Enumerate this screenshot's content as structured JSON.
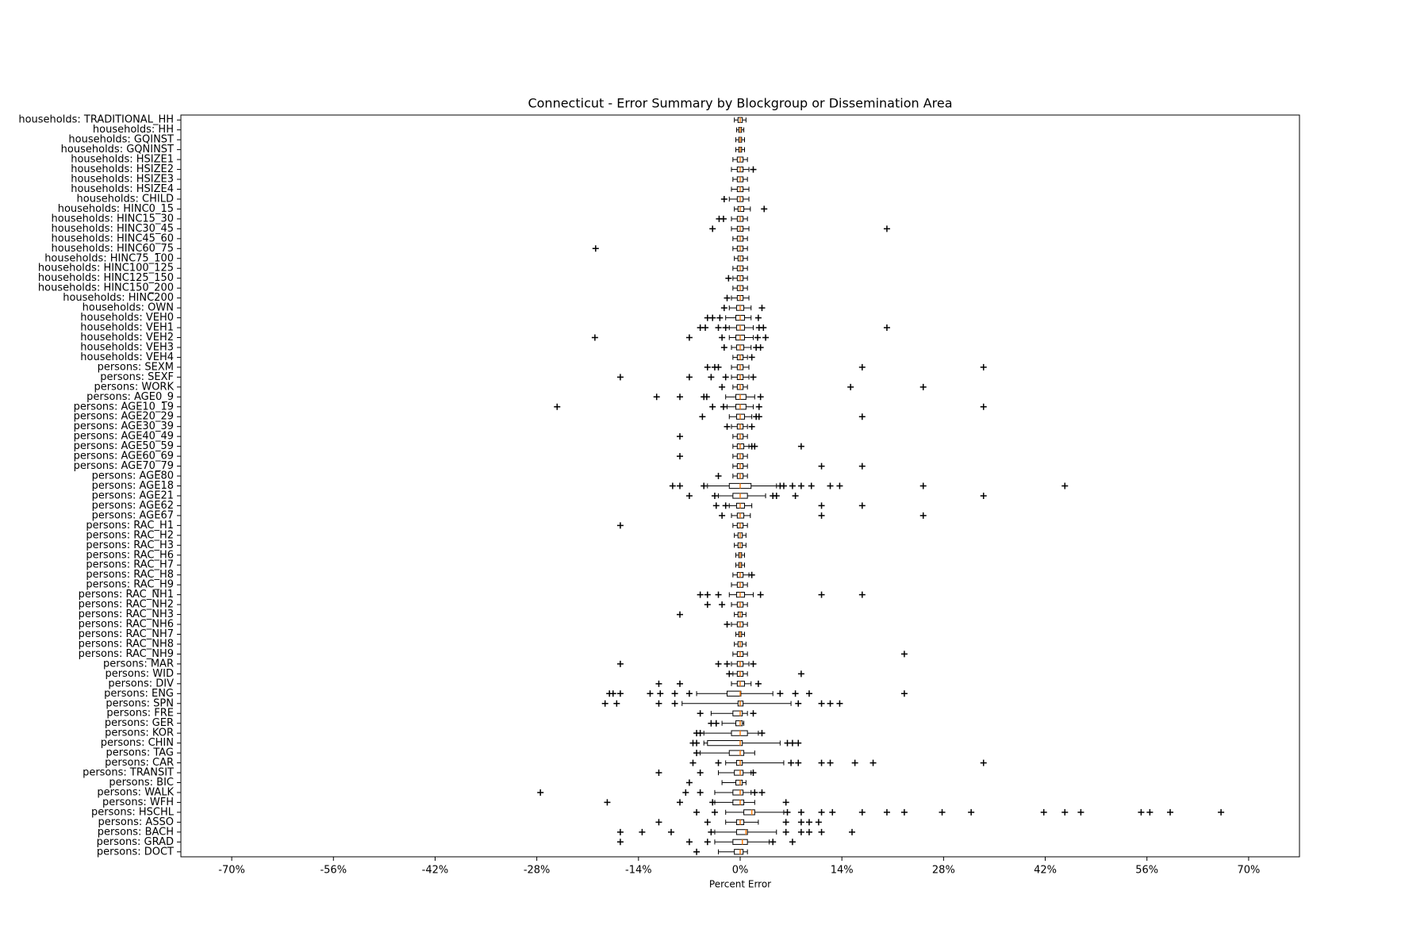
{
  "chart_data": {
    "type": "boxplot",
    "orientation": "horizontal",
    "title": "Connecticut - Error Summary by Blockgroup or Dissemination Area",
    "x_label": "Percent Error",
    "xlim": [
      -77,
      77
    ],
    "xticks": [
      {
        "value": -70,
        "label": "-70%"
      },
      {
        "value": -56,
        "label": "-56%"
      },
      {
        "value": -42,
        "label": "-42%"
      },
      {
        "value": -28,
        "label": "-28%"
      },
      {
        "value": -14,
        "label": "-14%"
      },
      {
        "value": 0,
        "label": "0%"
      },
      {
        "value": 14,
        "label": "14%"
      },
      {
        "value": 28,
        "label": "28%"
      },
      {
        "value": 42,
        "label": "42%"
      },
      {
        "value": 56,
        "label": "56%"
      },
      {
        "value": 70,
        "label": "70%"
      }
    ],
    "box_color": "#000000",
    "median_color": "#ff7f0e",
    "boxes": [
      {
        "label": "households: TRADITIONAL_HH",
        "whislo": -0.8,
        "q1": -0.3,
        "med": 0,
        "q3": 0.3,
        "whishi": 0.8,
        "fliers": []
      },
      {
        "label": "households: HH",
        "whislo": -0.5,
        "q1": -0.2,
        "med": 0,
        "q3": 0.2,
        "whishi": 0.5,
        "fliers": []
      },
      {
        "label": "households: GQINST",
        "whislo": -0.6,
        "q1": -0.2,
        "med": 0,
        "q3": 0.2,
        "whishi": 0.6,
        "fliers": []
      },
      {
        "label": "households: GQNINST",
        "whislo": -0.6,
        "q1": -0.2,
        "med": 0,
        "q3": 0.2,
        "whishi": 0.6,
        "fliers": []
      },
      {
        "label": "households: HSIZE1",
        "whislo": -1,
        "q1": -0.4,
        "med": 0,
        "q3": 0.4,
        "whishi": 1,
        "fliers": []
      },
      {
        "label": "households: HSIZE2",
        "whislo": -1.2,
        "q1": -0.4,
        "med": 0,
        "q3": 0.4,
        "whishi": 1.2,
        "fliers": [
          1.8
        ]
      },
      {
        "label": "households: HSIZE3",
        "whislo": -1,
        "q1": -0.4,
        "med": 0,
        "q3": 0.4,
        "whishi": 1,
        "fliers": []
      },
      {
        "label": "households: HSIZE4",
        "whislo": -1.2,
        "q1": -0.4,
        "med": 0,
        "q3": 0.4,
        "whishi": 1.2,
        "fliers": []
      },
      {
        "label": "households: CHILD",
        "whislo": -1.5,
        "q1": -0.4,
        "med": 0,
        "q3": 0.4,
        "whishi": 1.2,
        "fliers": [
          -2.2
        ]
      },
      {
        "label": "households: HINC0_15",
        "whislo": -0.8,
        "q1": -0.3,
        "med": 0,
        "q3": 0.5,
        "whishi": 1.4,
        "fliers": [
          3.3
        ]
      },
      {
        "label": "households: HINC15_30",
        "whislo": -1.2,
        "q1": -0.4,
        "med": 0,
        "q3": 0.4,
        "whishi": 1,
        "fliers": [
          -2.9,
          -2.3
        ]
      },
      {
        "label": "households: HINC30_45",
        "whislo": -1.2,
        "q1": -0.4,
        "med": 0,
        "q3": 0.4,
        "whishi": 1.2,
        "fliers": [
          -3.8,
          20.2
        ]
      },
      {
        "label": "households: HINC45_60",
        "whislo": -1,
        "q1": -0.4,
        "med": 0,
        "q3": 0.4,
        "whishi": 1,
        "fliers": []
      },
      {
        "label": "households: HINC60_75",
        "whislo": -1,
        "q1": -0.4,
        "med": 0,
        "q3": 0.4,
        "whishi": 1,
        "fliers": [
          -19.9
        ]
      },
      {
        "label": "households: HINC75_100",
        "whislo": -0.8,
        "q1": -0.3,
        "med": 0,
        "q3": 0.4,
        "whishi": 1,
        "fliers": []
      },
      {
        "label": "households: HINC100_125",
        "whislo": -1,
        "q1": -0.4,
        "med": 0,
        "q3": 0.4,
        "whishi": 1,
        "fliers": []
      },
      {
        "label": "households: HINC125_150",
        "whislo": -1,
        "q1": -0.4,
        "med": 0,
        "q3": 0.4,
        "whishi": 1,
        "fliers": [
          -1.6
        ]
      },
      {
        "label": "households: HINC150_200",
        "whislo": -1,
        "q1": -0.4,
        "med": 0,
        "q3": 0.4,
        "whishi": 1,
        "fliers": []
      },
      {
        "label": "households: HINC200",
        "whislo": -1.2,
        "q1": -0.4,
        "med": 0,
        "q3": 0.4,
        "whishi": 1.2,
        "fliers": [
          -1.8
        ]
      },
      {
        "label": "households: OWN",
        "whislo": -1.5,
        "q1": -0.5,
        "med": 0,
        "q3": 0.5,
        "whishi": 1.5,
        "fliers": [
          -2.2,
          3
        ]
      },
      {
        "label": "households: VEH0",
        "whislo": -2,
        "q1": -0.6,
        "med": 0,
        "q3": 0.6,
        "whishi": 1.5,
        "fliers": [
          -4.5,
          -3.8,
          -2.8,
          2.5
        ]
      },
      {
        "label": "households: VEH1",
        "whislo": -1.5,
        "q1": -0.5,
        "med": 0,
        "q3": 0.6,
        "whishi": 1.8,
        "fliers": [
          -5.5,
          -4.8,
          -3,
          -2,
          2.6,
          3.2,
          20.2
        ]
      },
      {
        "label": "households: VEH2",
        "whislo": -1.5,
        "q1": -0.6,
        "med": 0,
        "q3": 0.6,
        "whishi": 1.8,
        "fliers": [
          -20,
          -7,
          -2.5,
          2.4,
          3.5
        ]
      },
      {
        "label": "households: VEH3",
        "whislo": -1.2,
        "q1": -0.5,
        "med": 0,
        "q3": 0.5,
        "whishi": 1.5,
        "fliers": [
          -2.2,
          2.2,
          2.8
        ]
      },
      {
        "label": "households: VEH4",
        "whislo": -1,
        "q1": -0.4,
        "med": 0,
        "q3": 0.4,
        "whishi": 1,
        "fliers": [
          1.6
        ]
      },
      {
        "label": "persons: SEXM",
        "whislo": -1.2,
        "q1": -0.4,
        "med": 0,
        "q3": 0.4,
        "whishi": 1.2,
        "fliers": [
          -4.5,
          -3.5,
          -3,
          16.8,
          33.5
        ]
      },
      {
        "label": "persons: SEXF",
        "whislo": -1.2,
        "q1": -0.4,
        "med": 0,
        "q3": 0.4,
        "whishi": 1.2,
        "fliers": [
          -16.5,
          -7,
          -4,
          -2,
          1.8
        ]
      },
      {
        "label": "persons: WORK",
        "whislo": -1,
        "q1": -0.4,
        "med": 0,
        "q3": 0.4,
        "whishi": 1,
        "fliers": [
          -2.5,
          15.2,
          25.2
        ]
      },
      {
        "label": "persons: AGE0_9",
        "whislo": -2,
        "q1": -0.6,
        "med": 0,
        "q3": 0.8,
        "whishi": 2,
        "fliers": [
          -11.5,
          -8.3,
          -5,
          -4.6,
          2.8
        ]
      },
      {
        "label": "persons: AGE10_19",
        "whislo": -1.8,
        "q1": -0.6,
        "med": 0,
        "q3": 0.8,
        "whishi": 1.8,
        "fliers": [
          -25.2,
          -3.8,
          -2.3,
          2.6,
          33.5
        ]
      },
      {
        "label": "persons: AGE20_29",
        "whislo": -1.5,
        "q1": -0.5,
        "med": 0,
        "q3": 0.6,
        "whishi": 1.6,
        "fliers": [
          -5.2,
          2.2,
          2.6,
          16.8
        ]
      },
      {
        "label": "persons: AGE30_39",
        "whislo": -1.2,
        "q1": -0.4,
        "med": 0,
        "q3": 0.4,
        "whishi": 1,
        "fliers": [
          -1.8,
          1.6
        ]
      },
      {
        "label": "persons: AGE40_49",
        "whislo": -1,
        "q1": -0.4,
        "med": 0,
        "q3": 0.4,
        "whishi": 1,
        "fliers": [
          -8.3
        ]
      },
      {
        "label": "persons: AGE50_59",
        "whislo": -1,
        "q1": -0.4,
        "med": 0,
        "q3": 0.5,
        "whishi": 1.2,
        "fliers": [
          1.6,
          2,
          8.4
        ]
      },
      {
        "label": "persons: AGE60_69",
        "whislo": -1,
        "q1": -0.4,
        "med": 0,
        "q3": 0.4,
        "whishi": 1,
        "fliers": [
          -8.3
        ]
      },
      {
        "label": "persons: AGE70_79",
        "whislo": -1,
        "q1": -0.4,
        "med": 0,
        "q3": 0.4,
        "whishi": 1,
        "fliers": [
          11.2,
          16.8
        ]
      },
      {
        "label": "persons: AGE80",
        "whislo": -1,
        "q1": -0.4,
        "med": 0,
        "q3": 0.4,
        "whishi": 1,
        "fliers": [
          -3
        ]
      },
      {
        "label": "persons: AGE18",
        "whislo": -4.5,
        "q1": -1.5,
        "med": 0,
        "q3": 1.5,
        "whishi": 5,
        "fliers": [
          -9.3,
          -8.3,
          -5,
          5.5,
          6,
          7.2,
          8.4,
          9.8,
          12.4,
          13.7,
          25.2,
          44.7
        ]
      },
      {
        "label": "persons: AGE21",
        "whislo": -3,
        "q1": -1,
        "med": 0,
        "q3": 1,
        "whishi": 3.5,
        "fliers": [
          -7,
          -3.5,
          4.5,
          5,
          7.6,
          33.5
        ]
      },
      {
        "label": "persons: AGE62",
        "whislo": -1.5,
        "q1": -0.5,
        "med": 0,
        "q3": 0.6,
        "whishi": 1.6,
        "fliers": [
          -3.3,
          -2,
          11.2,
          16.8
        ]
      },
      {
        "label": "persons: AGE67",
        "whislo": -1.2,
        "q1": -0.4,
        "med": 0,
        "q3": 0.5,
        "whishi": 1.4,
        "fliers": [
          -2.5,
          11.2,
          25.2
        ]
      },
      {
        "label": "persons: RAC_H1",
        "whislo": -1,
        "q1": -0.4,
        "med": 0,
        "q3": 0.4,
        "whishi": 1,
        "fliers": [
          -16.5
        ]
      },
      {
        "label": "persons: RAC_H2",
        "whislo": -0.8,
        "q1": -0.3,
        "med": 0,
        "q3": 0.3,
        "whishi": 0.8,
        "fliers": []
      },
      {
        "label": "persons: RAC_H3",
        "whislo": -0.8,
        "q1": -0.3,
        "med": 0,
        "q3": 0.3,
        "whishi": 0.8,
        "fliers": []
      },
      {
        "label": "persons: RAC_H6",
        "whislo": -0.6,
        "q1": -0.2,
        "med": 0,
        "q3": 0.2,
        "whishi": 0.6,
        "fliers": []
      },
      {
        "label": "persons: RAC_H7",
        "whislo": -0.6,
        "q1": -0.2,
        "med": 0,
        "q3": 0.2,
        "whishi": 0.6,
        "fliers": []
      },
      {
        "label": "persons: RAC_H8",
        "whislo": -1,
        "q1": -0.4,
        "med": 0,
        "q3": 0.4,
        "whishi": 1.2,
        "fliers": [
          1.6
        ]
      },
      {
        "label": "persons: RAC_H9",
        "whislo": -1.2,
        "q1": -0.4,
        "med": 0,
        "q3": 0.4,
        "whishi": 1,
        "fliers": []
      },
      {
        "label": "persons: RAC_NH1",
        "whislo": -1.5,
        "q1": -0.5,
        "med": 0,
        "q3": 0.6,
        "whishi": 1.8,
        "fliers": [
          -5.5,
          -4.5,
          -3,
          2.8,
          11.2,
          16.8
        ]
      },
      {
        "label": "persons: RAC_NH2",
        "whislo": -1.2,
        "q1": -0.4,
        "med": 0,
        "q3": 0.4,
        "whishi": 1,
        "fliers": [
          -4.5,
          -2.5
        ]
      },
      {
        "label": "persons: RAC_NH3",
        "whislo": -0.8,
        "q1": -0.3,
        "med": 0,
        "q3": 0.3,
        "whishi": 0.8,
        "fliers": [
          -8.3
        ]
      },
      {
        "label": "persons: RAC_NH6",
        "whislo": -1.2,
        "q1": -0.4,
        "med": 0,
        "q3": 0.4,
        "whishi": 1,
        "fliers": [
          -1.8
        ]
      },
      {
        "label": "persons: RAC_NH7",
        "whislo": -0.6,
        "q1": -0.2,
        "med": 0,
        "q3": 0.2,
        "whishi": 0.6,
        "fliers": []
      },
      {
        "label": "persons: RAC_NH8",
        "whislo": -0.8,
        "q1": -0.3,
        "med": 0,
        "q3": 0.3,
        "whishi": 0.8,
        "fliers": []
      },
      {
        "label": "persons: RAC_NH9",
        "whislo": -1,
        "q1": -0.4,
        "med": 0,
        "q3": 0.4,
        "whishi": 1,
        "fliers": [
          22.6
        ]
      },
      {
        "label": "persons: MAR",
        "whislo": -1.2,
        "q1": -0.4,
        "med": 0,
        "q3": 0.4,
        "whishi": 1.2,
        "fliers": [
          -16.5,
          -3,
          -1.8,
          1.8
        ]
      },
      {
        "label": "persons: WID",
        "whislo": -1,
        "q1": -0.4,
        "med": 0,
        "q3": 0.4,
        "whishi": 1,
        "fliers": [
          -1.5,
          8.4
        ]
      },
      {
        "label": "persons: DIV",
        "whislo": -1.2,
        "q1": -0.4,
        "med": 0,
        "q3": 0.6,
        "whishi": 1.5,
        "fliers": [
          -11.2,
          -8.3,
          2.5
        ]
      },
      {
        "label": "persons: ENG",
        "whislo": -6,
        "q1": -1.8,
        "med": 0,
        "q3": 0.1,
        "whishi": 4.5,
        "fliers": [
          -18,
          -17.5,
          -16.5,
          -12.4,
          -11,
          -9,
          -7,
          5.5,
          7.6,
          9.5,
          22.6
        ]
      },
      {
        "label": "persons: SPN",
        "whislo": -8,
        "q1": -0.3,
        "med": 0,
        "q3": 0.4,
        "whishi": 7,
        "fliers": [
          -18.6,
          -17,
          -11.2,
          -9,
          8,
          11.2,
          12.4,
          13.7
        ]
      },
      {
        "label": "persons: FRE",
        "whislo": -4,
        "q1": -1,
        "med": 0,
        "q3": 0.3,
        "whishi": 1,
        "fliers": [
          -5.5,
          1.8
        ]
      },
      {
        "label": "persons: GER",
        "whislo": -2.5,
        "q1": -0.6,
        "med": 0,
        "q3": 0.3,
        "whishi": 0.5,
        "fliers": [
          -4,
          -3.3
        ]
      },
      {
        "label": "persons: KOR",
        "whislo": -5,
        "q1": -1.2,
        "med": 0,
        "q3": 1,
        "whishi": 2.5,
        "fliers": [
          -6,
          -5.5,
          3
        ]
      },
      {
        "label": "persons: CHIN",
        "whislo": -5,
        "q1": -4.5,
        "med": 0,
        "q3": 0.3,
        "whishi": 5.5,
        "fliers": [
          -6.5,
          -6,
          6.5,
          7.2,
          8
        ]
      },
      {
        "label": "persons: TAG",
        "whislo": -5.5,
        "q1": -1.5,
        "med": 0,
        "q3": 0.5,
        "whishi": 2,
        "fliers": [
          -6
        ]
      },
      {
        "label": "persons: CAR",
        "whislo": -2,
        "q1": -0.5,
        "med": 0,
        "q3": 0.3,
        "whishi": 6,
        "fliers": [
          -6.5,
          -3,
          7,
          8,
          11.2,
          12.4,
          15.8,
          18.3,
          33.5
        ]
      },
      {
        "label": "persons: TRANSIT",
        "whislo": -3,
        "q1": -0.8,
        "med": 0,
        "q3": 0.4,
        "whishi": 1.5,
        "fliers": [
          -11.2,
          -5.5,
          1.8
        ]
      },
      {
        "label": "persons: BIC",
        "whislo": -2.5,
        "q1": -0.6,
        "med": 0,
        "q3": 0.3,
        "whishi": 0.8,
        "fliers": [
          -7
        ]
      },
      {
        "label": "persons: WALK",
        "whislo": -3.5,
        "q1": -1,
        "med": 0,
        "q3": 0.4,
        "whishi": 1.5,
        "fliers": [
          -27.5,
          -7.5,
          -5.5,
          2,
          3
        ]
      },
      {
        "label": "persons: WFH",
        "whislo": -3.5,
        "q1": -1,
        "med": 0,
        "q3": 0.5,
        "whishi": 2,
        "fliers": [
          -18.3,
          -8.3,
          -3.8,
          6.3
        ]
      },
      {
        "label": "persons: HSCHL",
        "whislo": -2,
        "q1": 0.5,
        "med": 1.6,
        "q3": 2,
        "whishi": 6,
        "fliers": [
          -6,
          -3.5,
          6.5,
          8.4,
          11.2,
          12.7,
          16.8,
          20.2,
          22.6,
          27.8,
          31.8,
          41.8,
          44.7,
          46.9,
          55.2,
          56.4,
          59.2,
          66.2
        ]
      },
      {
        "label": "persons: ASSO",
        "whislo": -2,
        "q1": -0.5,
        "med": 0,
        "q3": 0.5,
        "whishi": 2.5,
        "fliers": [
          -11.2,
          -4.5,
          6.3,
          8.4,
          9.5,
          10.8
        ]
      },
      {
        "label": "persons: BACH",
        "whislo": -3.5,
        "q1": -0.5,
        "med": 0.8,
        "q3": 1,
        "whishi": 5,
        "fliers": [
          -16.5,
          -13.5,
          -9.5,
          -4,
          6.3,
          8.4,
          9.5,
          11.2,
          15.4
        ]
      },
      {
        "label": "persons: GRAD",
        "whislo": -3.5,
        "q1": -1,
        "med": 0.3,
        "q3": 1,
        "whishi": 4,
        "fliers": [
          -16.5,
          -7,
          -4.5,
          4.5,
          7.2
        ]
      },
      {
        "label": "persons: DOCT",
        "whislo": -3,
        "q1": -0.8,
        "med": 0,
        "q3": 0.4,
        "whishi": 1,
        "fliers": [
          -6
        ]
      }
    ]
  }
}
